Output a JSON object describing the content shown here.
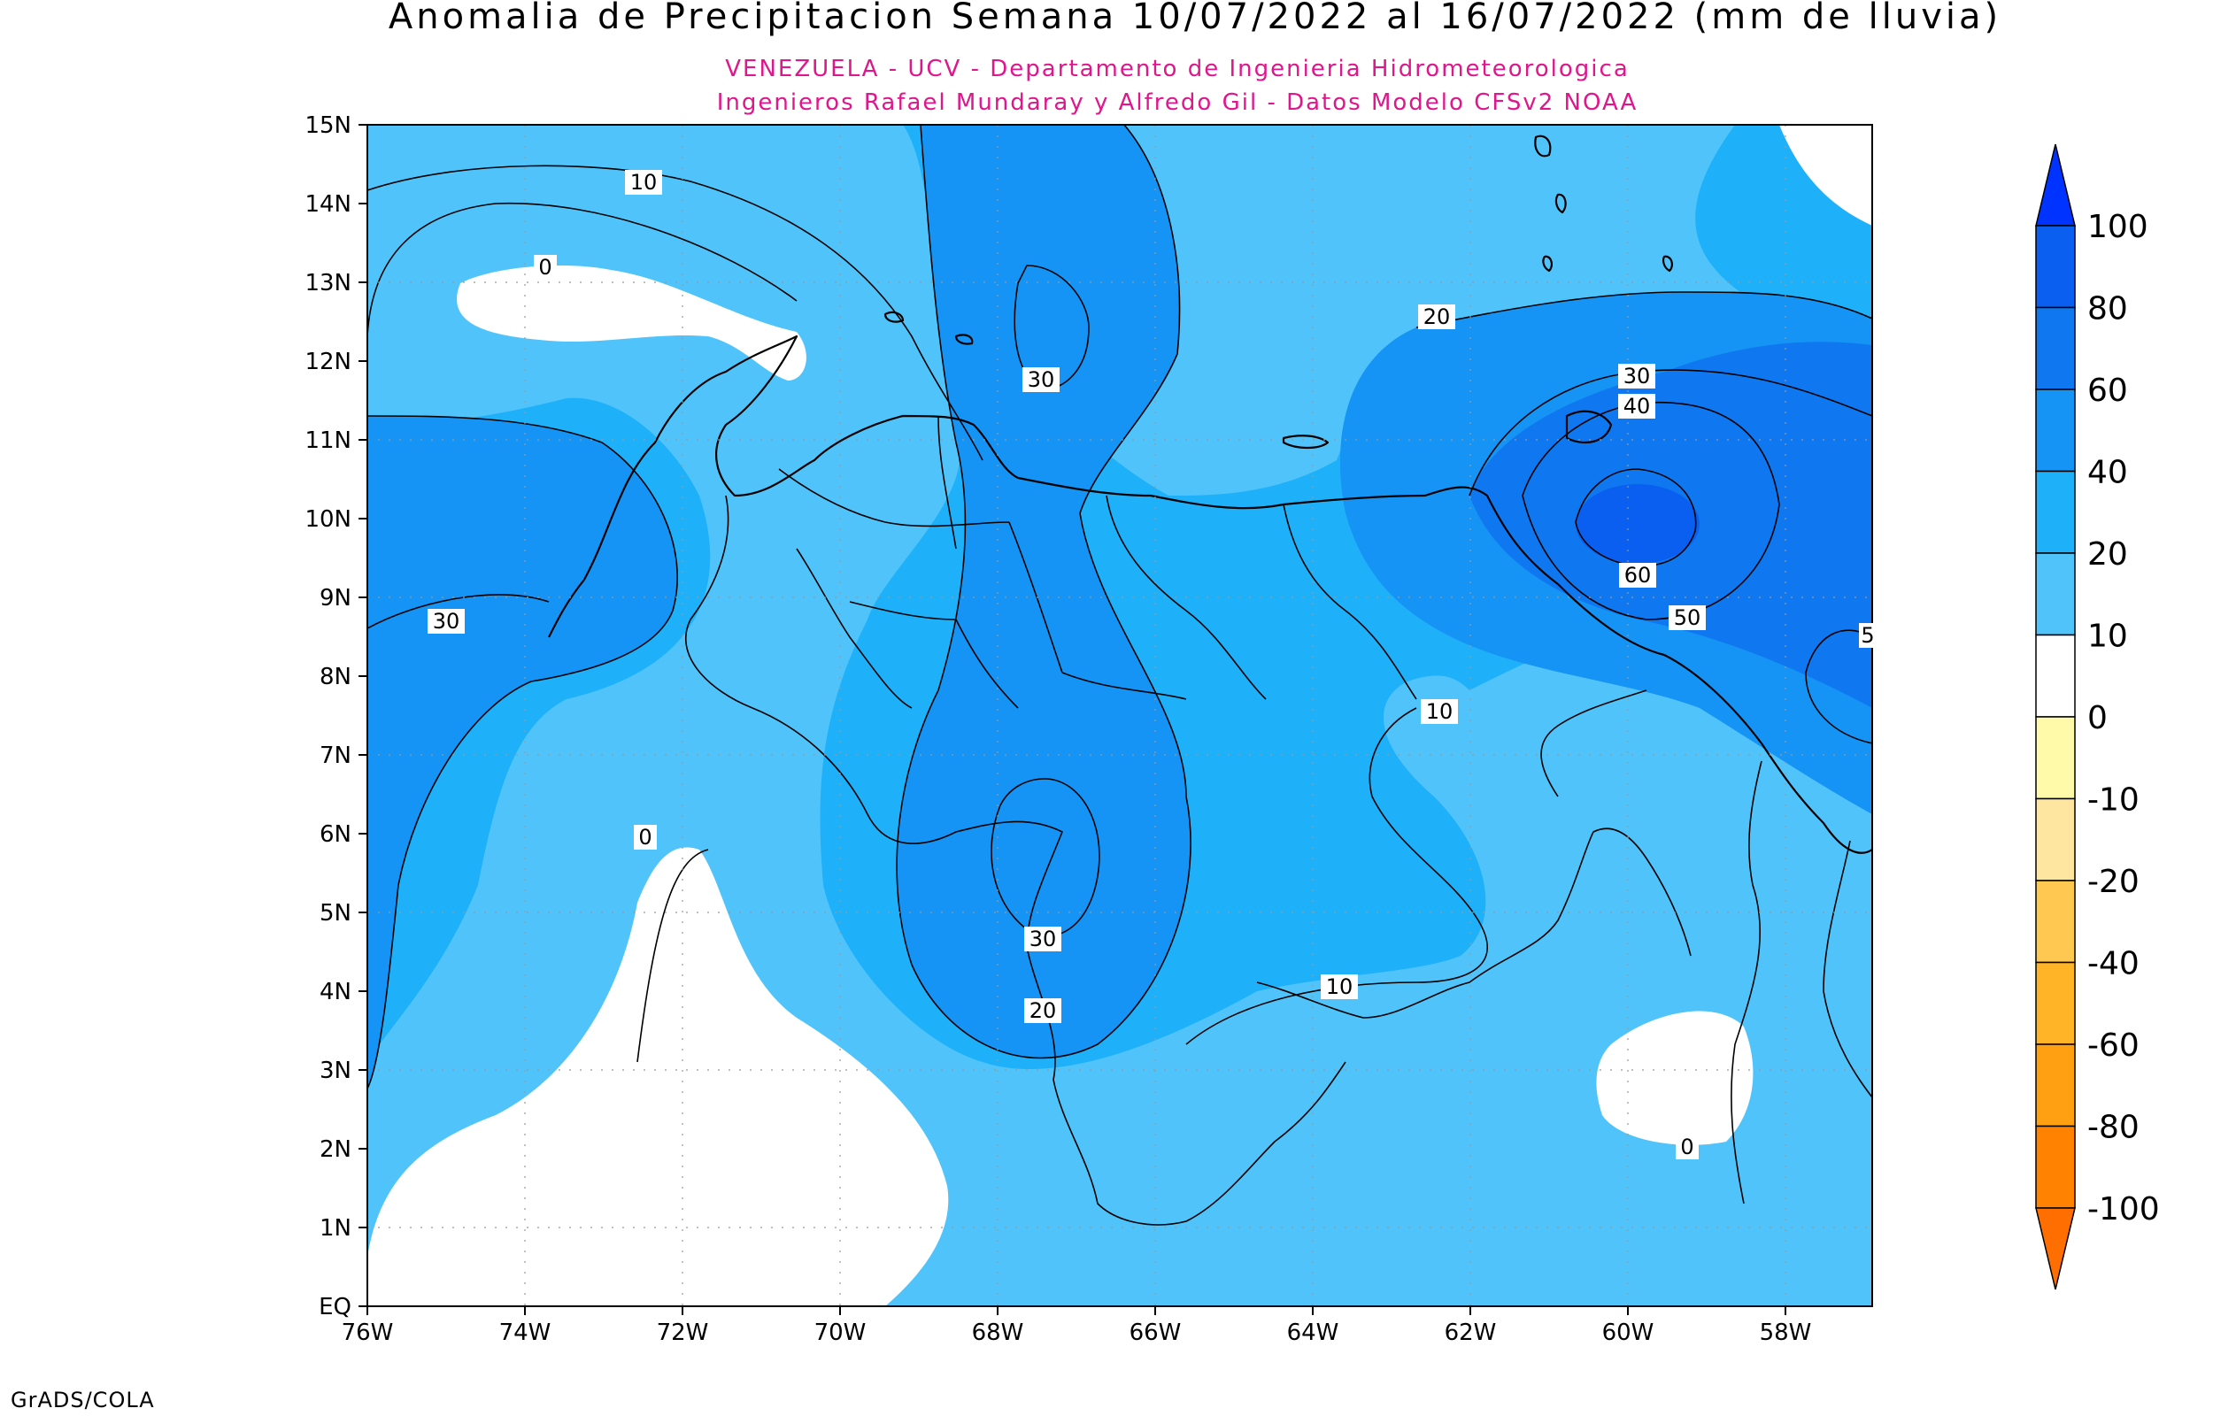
{
  "title": "Anomalia de Precipitacion Semana 10/07/2022 al 16/07/2022 (mm de lluvia)",
  "subtitle_1": "VENEZUELA - UCV - Departamento de Ingenieria Hidrometeorologica",
  "subtitle_2": "Ingenieros Rafael Mundaray y Alfredo Gil - Datos Modelo CFSv2 NOAA",
  "footer": "GrADS/COLA",
  "y_ticks": [
    "15N",
    "14N",
    "13N",
    "12N",
    "11N",
    "10N",
    "9N",
    "8N",
    "7N",
    "6N",
    "5N",
    "4N",
    "3N",
    "2N",
    "1N",
    "EQ"
  ],
  "x_ticks": [
    "76W",
    "74W",
    "72W",
    "70W",
    "68W",
    "66W",
    "64W",
    "62W",
    "60W",
    "58W"
  ],
  "colorbar": {
    "labels": [
      "100",
      "80",
      "60",
      "40",
      "20",
      "10",
      "0",
      "-10",
      "-20",
      "-40",
      "-60",
      "-80",
      "-100"
    ],
    "colors": [
      "#0033ff",
      "#0a5ff0",
      "#0f78f0",
      "#1594f5",
      "#1fb0fa",
      "#50c4fa",
      "#ffffff",
      "#fffaaa",
      "#ffe6a0",
      "#ffc850",
      "#ffb428",
      "#ffa012",
      "#ff8200",
      "#ff6e00"
    ]
  },
  "contour_labels": [
    {
      "text": "10"
    },
    {
      "text": "0"
    },
    {
      "text": "30"
    },
    {
      "text": "30"
    },
    {
      "text": "20"
    },
    {
      "text": "30"
    },
    {
      "text": "40"
    },
    {
      "text": "60"
    },
    {
      "text": "50"
    },
    {
      "text": "5"
    },
    {
      "text": "10"
    },
    {
      "text": "0"
    },
    {
      "text": "30"
    },
    {
      "text": "20"
    },
    {
      "text": "10"
    },
    {
      "text": "0"
    }
  ]
}
